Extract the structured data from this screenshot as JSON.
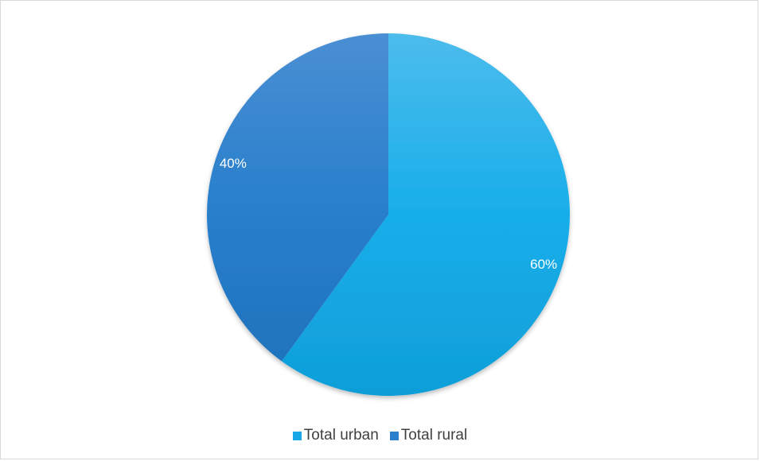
{
  "chart_data": {
    "type": "pie",
    "title": "",
    "categories": [
      "Total urban",
      "Total rural"
    ],
    "values": [
      60,
      40
    ],
    "labels": [
      "60%",
      "40%"
    ],
    "colors": [
      "#1aa7e6",
      "#2a80cc"
    ],
    "start_angle_deg": 0,
    "direction": "clockwise",
    "legend_position": "bottom"
  }
}
